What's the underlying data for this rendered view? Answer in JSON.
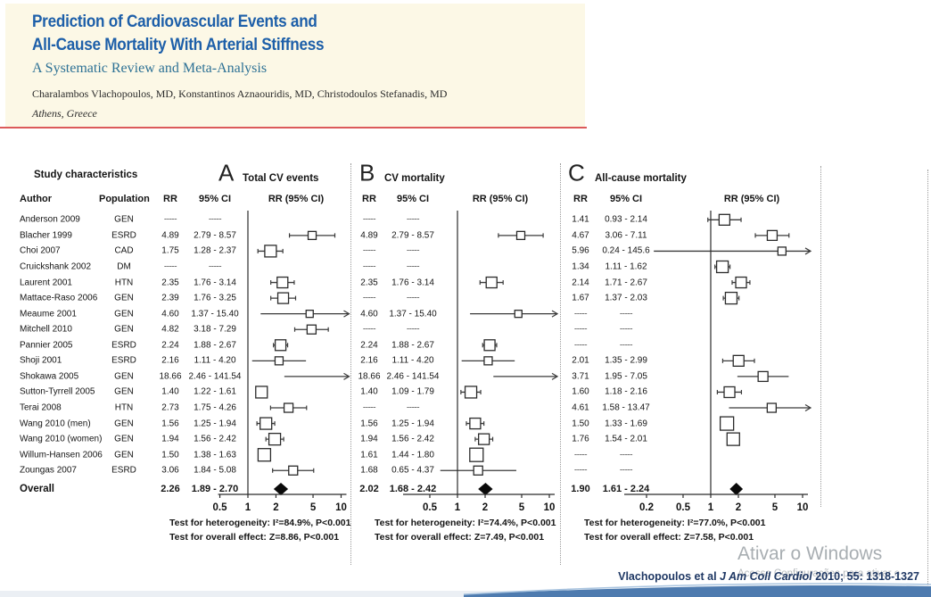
{
  "paper_header": {
    "title_line1": "Prediction of Cardiovascular Events and",
    "title_line2": "All-Cause Mortality With Arterial Stiffness",
    "subtitle": "A Systematic Review and Meta-Analysis",
    "authors": "Charalambos Vlachopoulos, MD, Konstantinos Aznaouridis, MD, Christodoulos Stefanadis, MD",
    "affiliation": "Athens, Greece",
    "title_color": "#1D5FA9",
    "subtitle_color": "#2D7195",
    "bg_color": "#FCF8E6",
    "rule_color": "#DC5A5A"
  },
  "figure": {
    "left_header": "Study characteristics",
    "columns": {
      "author": "Author",
      "population": "Population",
      "rr": "RR",
      "ci": "95% CI",
      "plot": "RR (95% CI)"
    },
    "missing": "-----"
  },
  "chart_data": {
    "type": "forest",
    "xscale": "log",
    "overall_label": "Overall",
    "panels": [
      {
        "id": "A",
        "title": "Total CV events",
        "ticks": [
          0.5,
          1,
          2,
          5,
          10
        ],
        "heterogeneity": "Test for heterogeneity: I²=84.9%, P<0.001",
        "overall_effect": "Test for overall effect: Z=8.86, P<0.001",
        "overall": {
          "rr": 2.26,
          "lo": 1.89,
          "hi": 2.7,
          "rr_text": "2.26",
          "ci_text": "1.89 - 2.70"
        }
      },
      {
        "id": "B",
        "title": "CV mortality",
        "ticks": [
          0.5,
          1,
          2,
          5,
          10
        ],
        "heterogeneity": "Test for heterogeneity: I²=74.4%, P<0.001",
        "overall_effect": "Test for overall effect: Z=7.49, P<0.001",
        "overall": {
          "rr": 2.02,
          "lo": 1.68,
          "hi": 2.42,
          "rr_text": "2.02",
          "ci_text": "1.68 - 2.42"
        }
      },
      {
        "id": "C",
        "title": "All-cause mortality",
        "ticks": [
          0.2,
          0.5,
          1,
          2,
          5,
          10
        ],
        "heterogeneity": "Test for heterogeneity: I²=77.0%, P<0.001",
        "overall_effect": "Test for overall effect: Z=7.58, P<0.001",
        "overall": {
          "rr": 1.9,
          "lo": 1.61,
          "hi": 2.24,
          "rr_text": "1.90",
          "ci_text": "1.61 - 2.24"
        }
      }
    ],
    "studies": [
      {
        "author": "Anderson 2009",
        "population": "GEN",
        "A": null,
        "B": null,
        "C": {
          "rr": 1.41,
          "lo": 0.93,
          "hi": 2.14,
          "rr_text": "1.41",
          "ci_text": "0.93 - 2.14",
          "size": 12
        }
      },
      {
        "author": "Blacher 1999",
        "population": "ESRD",
        "A": {
          "rr": 4.89,
          "lo": 2.79,
          "hi": 8.57,
          "rr_text": "4.89",
          "ci_text": "2.79 - 8.57",
          "size": 9
        },
        "B": {
          "rr": 4.89,
          "lo": 2.79,
          "hi": 8.57,
          "rr_text": "4.89",
          "ci_text": "2.79 - 8.57",
          "size": 9
        },
        "C": {
          "rr": 4.67,
          "lo": 3.06,
          "hi": 7.11,
          "rr_text": "4.67",
          "ci_text": "3.06 - 7.11",
          "size": 11
        }
      },
      {
        "author": "Choi 2007",
        "population": "CAD",
        "A": {
          "rr": 1.75,
          "lo": 1.28,
          "hi": 2.37,
          "rr_text": "1.75",
          "ci_text": "1.28 - 2.37",
          "size": 13
        },
        "B": null,
        "C": {
          "rr": 5.96,
          "lo": 0.24,
          "hi": 145.6,
          "rr_text": "5.96",
          "ci_text": "0.24 - 145.6",
          "size": 9
        }
      },
      {
        "author": "Cruickshank 2002",
        "population": "DM",
        "A": null,
        "B": null,
        "C": {
          "rr": 1.34,
          "lo": 1.11,
          "hi": 1.62,
          "rr_text": "1.34",
          "ci_text": "1.11 - 1.62",
          "size": 13
        }
      },
      {
        "author": "Laurent 2001",
        "population": "HTN",
        "A": {
          "rr": 2.35,
          "lo": 1.76,
          "hi": 3.14,
          "rr_text": "2.35",
          "ci_text": "1.76 - 3.14",
          "size": 12
        },
        "B": {
          "rr": 2.35,
          "lo": 1.76,
          "hi": 3.14,
          "rr_text": "2.35",
          "ci_text": "1.76 - 3.14",
          "size": 12
        },
        "C": {
          "rr": 2.14,
          "lo": 1.71,
          "hi": 2.67,
          "rr_text": "2.14",
          "ci_text": "1.71 - 2.67",
          "size": 12
        }
      },
      {
        "author": "Mattace-Raso 2006",
        "population": "GEN",
        "A": {
          "rr": 2.39,
          "lo": 1.76,
          "hi": 3.25,
          "rr_text": "2.39",
          "ci_text": "1.76 - 3.25",
          "size": 12
        },
        "B": null,
        "C": {
          "rr": 1.67,
          "lo": 1.37,
          "hi": 2.03,
          "rr_text": "1.67",
          "ci_text": "1.37 - 2.03",
          "size": 13
        }
      },
      {
        "author": "Meaume 2001",
        "population": "GEN",
        "A": {
          "rr": 4.6,
          "lo": 1.37,
          "hi": 15.4,
          "rr_text": "4.60",
          "ci_text": "1.37 - 15.40",
          "size": 8
        },
        "B": {
          "rr": 4.6,
          "lo": 1.37,
          "hi": 15.4,
          "rr_text": "4.60",
          "ci_text": "1.37 - 15.40",
          "size": 8
        },
        "C": null
      },
      {
        "author": "Mitchell 2010",
        "population": "GEN",
        "A": {
          "rr": 4.82,
          "lo": 3.18,
          "hi": 7.29,
          "rr_text": "4.82",
          "ci_text": "3.18 - 7.29",
          "size": 10
        },
        "B": null,
        "C": null
      },
      {
        "author": "Pannier 2005",
        "population": "ESRD",
        "A": {
          "rr": 2.24,
          "lo": 1.88,
          "hi": 2.67,
          "rr_text": "2.24",
          "ci_text": "1.88 - 2.67",
          "size": 12
        },
        "B": {
          "rr": 2.24,
          "lo": 1.88,
          "hi": 2.67,
          "rr_text": "2.24",
          "ci_text": "1.88 - 2.67",
          "size": 12
        },
        "C": null
      },
      {
        "author": "Shoji 2001",
        "population": "ESRD",
        "A": {
          "rr": 2.16,
          "lo": 1.11,
          "hi": 4.2,
          "rr_text": "2.16",
          "ci_text": "1.11 - 4.20",
          "size": 9
        },
        "B": {
          "rr": 2.16,
          "lo": 1.11,
          "hi": 4.2,
          "rr_text": "2.16",
          "ci_text": "1.11 - 4.20",
          "size": 9
        },
        "C": {
          "rr": 2.01,
          "lo": 1.35,
          "hi": 2.99,
          "rr_text": "2.01",
          "ci_text": "1.35 - 2.99",
          "size": 12
        }
      },
      {
        "author": "Shokawa 2005",
        "population": "GEN",
        "A": {
          "rr": 18.66,
          "lo": 2.46,
          "hi": 141.54,
          "rr_text": "18.66",
          "ci_text": "2.46 - 141.54",
          "size": 8
        },
        "B": {
          "rr": 18.66,
          "lo": 2.46,
          "hi": 141.54,
          "rr_text": "18.66",
          "ci_text": "2.46 - 141.54",
          "size": 8
        },
        "C": {
          "rr": 3.71,
          "lo": 1.95,
          "hi": 7.05,
          "rr_text": "3.71",
          "ci_text": "1.95 - 7.05",
          "size": 11
        }
      },
      {
        "author": "Sutton-Tyrrell 2005",
        "population": "GEN",
        "A": {
          "rr": 1.4,
          "lo": 1.22,
          "hi": 1.61,
          "rr_text": "1.40",
          "ci_text": "1.22 - 1.61",
          "size": 13
        },
        "B": {
          "rr": 1.4,
          "lo": 1.09,
          "hi": 1.79,
          "rr_text": "1.40",
          "ci_text": "1.09 - 1.79",
          "size": 13
        },
        "C": {
          "rr": 1.6,
          "lo": 1.18,
          "hi": 2.16,
          "rr_text": "1.60",
          "ci_text": "1.18 - 2.16",
          "size": 12
        }
      },
      {
        "author": "Terai 2008",
        "population": "HTN",
        "A": {
          "rr": 2.73,
          "lo": 1.75,
          "hi": 4.26,
          "rr_text": "2.73",
          "ci_text": "1.75 - 4.26",
          "size": 10
        },
        "B": null,
        "C": {
          "rr": 4.61,
          "lo": 1.58,
          "hi": 13.47,
          "rr_text": "4.61",
          "ci_text": "1.58 - 13.47",
          "size": 10
        }
      },
      {
        "author": "Wang 2010 (men)",
        "population": "GEN",
        "A": {
          "rr": 1.56,
          "lo": 1.25,
          "hi": 1.94,
          "rr_text": "1.56",
          "ci_text": "1.25 - 1.94",
          "size": 13
        },
        "B": {
          "rr": 1.56,
          "lo": 1.25,
          "hi": 1.94,
          "rr_text": "1.56",
          "ci_text": "1.25 - 1.94",
          "size": 12
        },
        "C": {
          "rr": 1.5,
          "lo": 1.33,
          "hi": 1.69,
          "rr_text": "1.50",
          "ci_text": "1.33 - 1.69",
          "size": 15
        }
      },
      {
        "author": "Wang 2010 (women)",
        "population": "GEN",
        "A": {
          "rr": 1.94,
          "lo": 1.56,
          "hi": 2.42,
          "rr_text": "1.94",
          "ci_text": "1.56 - 2.42",
          "size": 13
        },
        "B": {
          "rr": 1.94,
          "lo": 1.56,
          "hi": 2.42,
          "rr_text": "1.94",
          "ci_text": "1.56 - 2.42",
          "size": 12
        },
        "C": {
          "rr": 1.76,
          "lo": 1.54,
          "hi": 2.01,
          "rr_text": "1.76",
          "ci_text": "1.54 - 2.01",
          "size": 14
        }
      },
      {
        "author": "Willum-Hansen 2006",
        "population": "GEN",
        "A": {
          "rr": 1.5,
          "lo": 1.38,
          "hi": 1.63,
          "rr_text": "1.50",
          "ci_text": "1.38 - 1.63",
          "size": 14
        },
        "B": {
          "rr": 1.61,
          "lo": 1.44,
          "hi": 1.8,
          "rr_text": "1.61",
          "ci_text": "1.44 - 1.80",
          "size": 15
        },
        "C": null
      },
      {
        "author": "Zoungas 2007",
        "population": "ESRD",
        "A": {
          "rr": 3.06,
          "lo": 1.84,
          "hi": 5.08,
          "rr_text": "3.06",
          "ci_text": "1.84 - 5.08",
          "size": 10
        },
        "B": {
          "rr": 1.68,
          "lo": 0.65,
          "hi": 4.37,
          "rr_text": "1.68",
          "ci_text": "0.65 - 4.37",
          "size": 10
        },
        "C": null
      }
    ]
  },
  "citation": {
    "pre": "Vlachopoulos et al ",
    "journal": "J Am Coll Cardiol",
    "post": " 2010; 55: 1318-1327",
    "color": "#1F3864"
  },
  "watermark": {
    "line1": "Ativar o Windows",
    "line2": "Acesse Configurações para ativar o"
  }
}
